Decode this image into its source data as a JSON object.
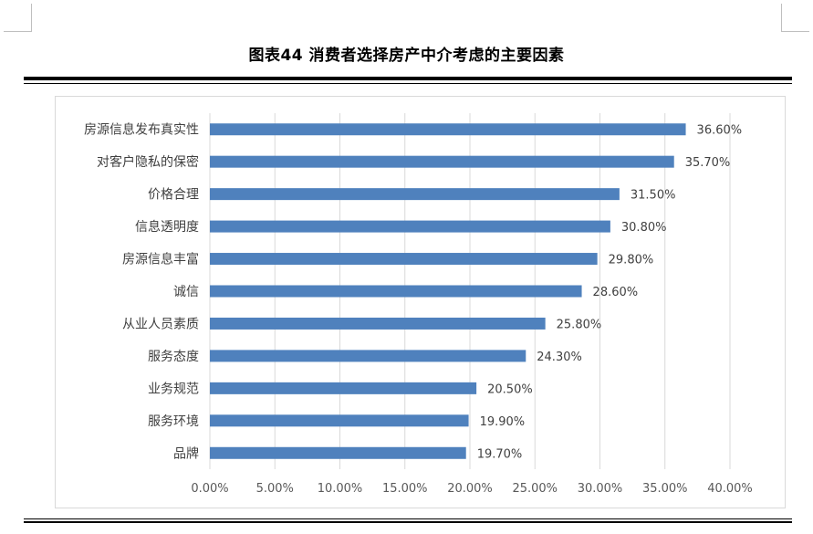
{
  "title": "图表44  消费者选择房产中介考虑的主要因素",
  "chart_data": {
    "type": "bar",
    "orientation": "horizontal",
    "categories": [
      "房源信息发布真实性",
      "对客户隐私的保密",
      "价格合理",
      "信息透明度",
      "房源信息丰富",
      "诚信",
      "从业人员素质",
      "服务态度",
      "业务规范",
      "服务环境",
      "品牌"
    ],
    "values": [
      36.6,
      35.7,
      31.5,
      30.8,
      29.8,
      28.6,
      25.8,
      24.3,
      20.5,
      19.9,
      19.7
    ],
    "data_labels": [
      "36.60%",
      "35.70%",
      "31.50%",
      "30.80%",
      "29.80%",
      "28.60%",
      "25.80%",
      "24.30%",
      "20.50%",
      "19.90%",
      "19.70%"
    ],
    "x_ticks": [
      "0.00%",
      "5.00%",
      "10.00%",
      "15.00%",
      "20.00%",
      "25.00%",
      "30.00%",
      "35.00%",
      "40.00%"
    ],
    "xlim": [
      0,
      40
    ],
    "xlabel": "",
    "ylabel": "",
    "grid": "vertical",
    "legend": "none",
    "bar_color": "#4f81bd"
  }
}
